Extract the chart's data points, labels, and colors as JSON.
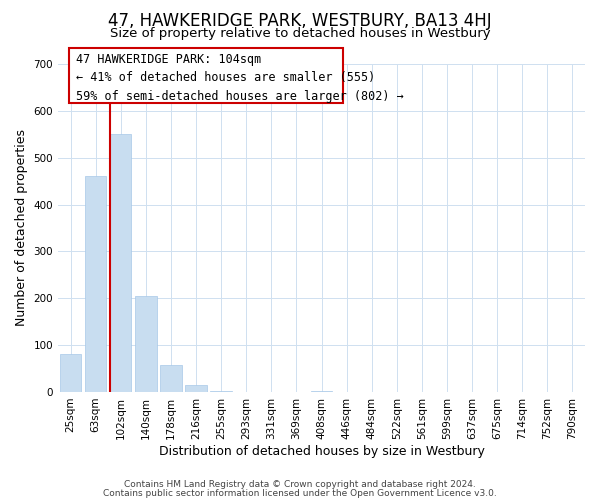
{
  "title": "47, HAWKERIDGE PARK, WESTBURY, BA13 4HJ",
  "subtitle": "Size of property relative to detached houses in Westbury",
  "xlabel": "Distribution of detached houses by size in Westbury",
  "ylabel": "Number of detached properties",
  "bin_labels": [
    "25sqm",
    "63sqm",
    "102sqm",
    "140sqm",
    "178sqm",
    "216sqm",
    "255sqm",
    "293sqm",
    "331sqm",
    "369sqm",
    "408sqm",
    "446sqm",
    "484sqm",
    "522sqm",
    "561sqm",
    "599sqm",
    "637sqm",
    "675sqm",
    "714sqm",
    "752sqm",
    "790sqm"
  ],
  "bar_heights": [
    80,
    460,
    550,
    205,
    57,
    15,
    2,
    0,
    0,
    0,
    3,
    0,
    0,
    0,
    0,
    0,
    0,
    0,
    0,
    0,
    0
  ],
  "bar_color": "#c8ddf0",
  "bar_edge_color": "#a8c8e8",
  "vline_bar_index": 2,
  "vline_color": "#cc0000",
  "annotation_text_line1": "47 HAWKERIDGE PARK: 104sqm",
  "annotation_text_line2": "← 41% of detached houses are smaller (555)",
  "annotation_text_line3": "59% of semi-detached houses are larger (802) →",
  "ylim": [
    0,
    700
  ],
  "yticks": [
    0,
    100,
    200,
    300,
    400,
    500,
    600,
    700
  ],
  "footer_line1": "Contains HM Land Registry data © Crown copyright and database right 2024.",
  "footer_line2": "Contains public sector information licensed under the Open Government Licence v3.0.",
  "bg_color": "#ffffff",
  "grid_color": "#cfe0f0",
  "title_fontsize": 12,
  "subtitle_fontsize": 9.5,
  "axis_label_fontsize": 9,
  "tick_fontsize": 7.5,
  "footer_fontsize": 6.5,
  "ann_fontsize": 8.5
}
